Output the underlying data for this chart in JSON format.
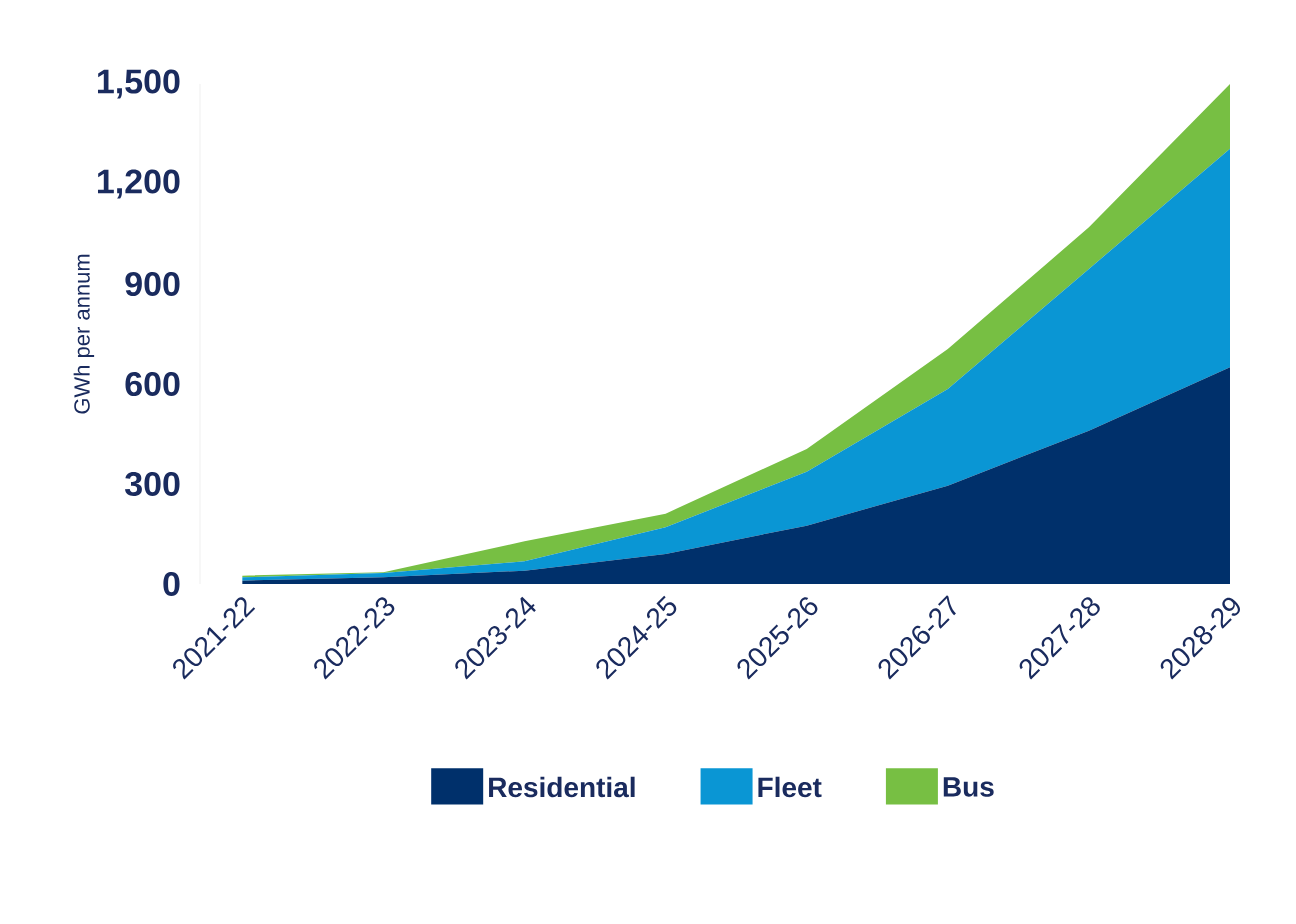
{
  "chart_data": {
    "type": "area",
    "stacked": true,
    "ylabel": "GWh per annum",
    "categories": [
      "2021-22",
      "2022-23",
      "2023-24",
      "2024-25",
      "2025-26",
      "2026-27",
      "2027-28",
      "2028-29"
    ],
    "series": [
      {
        "name": "Residential",
        "color": "#00306b",
        "values": [
          10,
          20,
          40,
          90,
          175,
          295,
          460,
          650
        ]
      },
      {
        "name": "Fleet",
        "color": "#0a96d4",
        "values": [
          10,
          13,
          28,
          80,
          162,
          290,
          485,
          656
        ]
      },
      {
        "name": "Bus",
        "color": "#77bf43",
        "values": [
          5,
          2,
          60,
          41,
          68,
          120,
          125,
          194
        ]
      }
    ],
    "ylim": [
      0,
      1500
    ],
    "yticks": [
      0,
      300,
      600,
      900,
      {
        "value": 1200,
        "label": "1,200"
      },
      {
        "value": 1500,
        "label": "1,500"
      }
    ],
    "legend": "bottom",
    "grid": false
  }
}
